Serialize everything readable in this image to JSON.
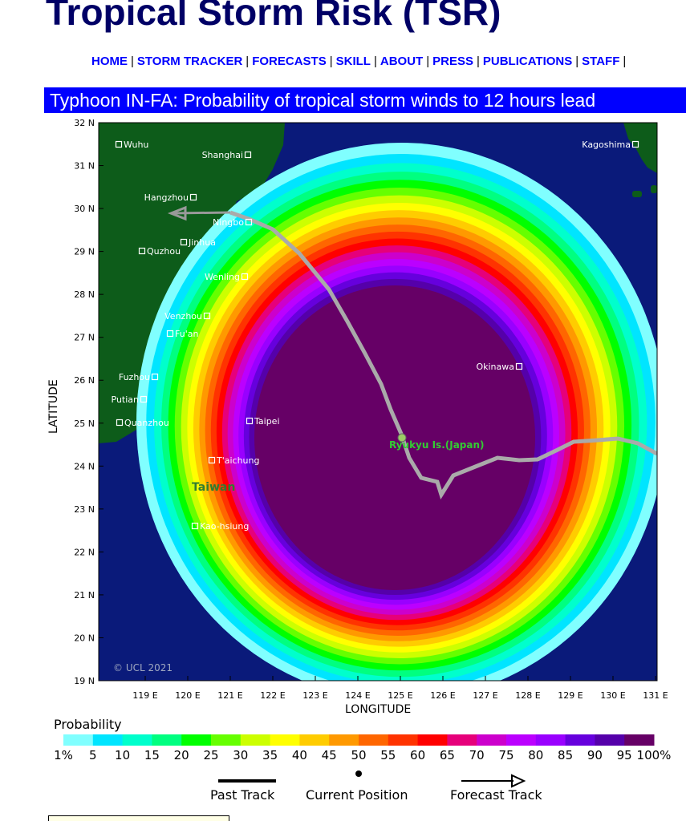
{
  "header": {
    "title": "Tropical Storm Risk (TSR)"
  },
  "nav": {
    "items": [
      "HOME",
      "STORM TRACKER",
      "FORECASTS",
      "SKILL",
      "ABOUT",
      "PRESS",
      "PUBLICATIONS",
      "STAFF"
    ]
  },
  "map": {
    "heading": "Typhoon IN-FA: Probability of tropical storm winds to 12 hours lead",
    "colors": {
      "ocean": "#0a1a7a",
      "land": "#0d5c1a"
    },
    "y_axis_label": "LATITUDE",
    "x_axis_label": "LONGITUDE",
    "lat_ticks": [
      "32 N",
      "31 N",
      "30 N",
      "29 N",
      "28 N",
      "27 N",
      "26 N",
      "25 N",
      "24 N",
      "23 N",
      "22 N",
      "21 N",
      "20 N",
      "19 N"
    ],
    "lon_ticks": [
      "119 E",
      "120 E",
      "121 E",
      "122 E",
      "123 E",
      "124 E",
      "125 E",
      "126 E",
      "127 E",
      "128 E",
      "129 E",
      "130 E",
      "131 E"
    ],
    "cities": [
      "Wuhu",
      "Shanghai",
      "Kagoshima",
      "Hangzhou",
      "Ningbo",
      "Jinhua",
      "Quzhou",
      "Wenling",
      "Venzhou",
      "Fu'an",
      "Okinawa",
      "Fuzhou",
      "Putian",
      "Quanzhou",
      "Taipei",
      "T'aichung",
      "Kao-hsiung"
    ],
    "region_labels": [
      "Taiwan",
      "Ryukyu Is.(Japan)"
    ],
    "copyright": "© UCL 2021"
  },
  "legend": {
    "title": "Probability",
    "labels": [
      "1%",
      "5",
      "10",
      "15",
      "20",
      "25",
      "30",
      "35",
      "40",
      "45",
      "50",
      "55",
      "60",
      "65",
      "70",
      "75",
      "80",
      "85",
      "90",
      "95",
      "100%"
    ],
    "colors": [
      "#80ffff",
      "#00e5ff",
      "#00ffcc",
      "#00ff80",
      "#00ff00",
      "#66ff00",
      "#ccff00",
      "#ffff00",
      "#ffcc00",
      "#ff9900",
      "#ff6600",
      "#ff3300",
      "#ff0000",
      "#e6007a",
      "#cc00cc",
      "#bb00ff",
      "#9900ff",
      "#6600dd",
      "#5500aa",
      "#660066"
    ],
    "past_track_label": "Past Track",
    "current_position_label": "Current Position",
    "forecast_track_label": "Forecast Track"
  }
}
